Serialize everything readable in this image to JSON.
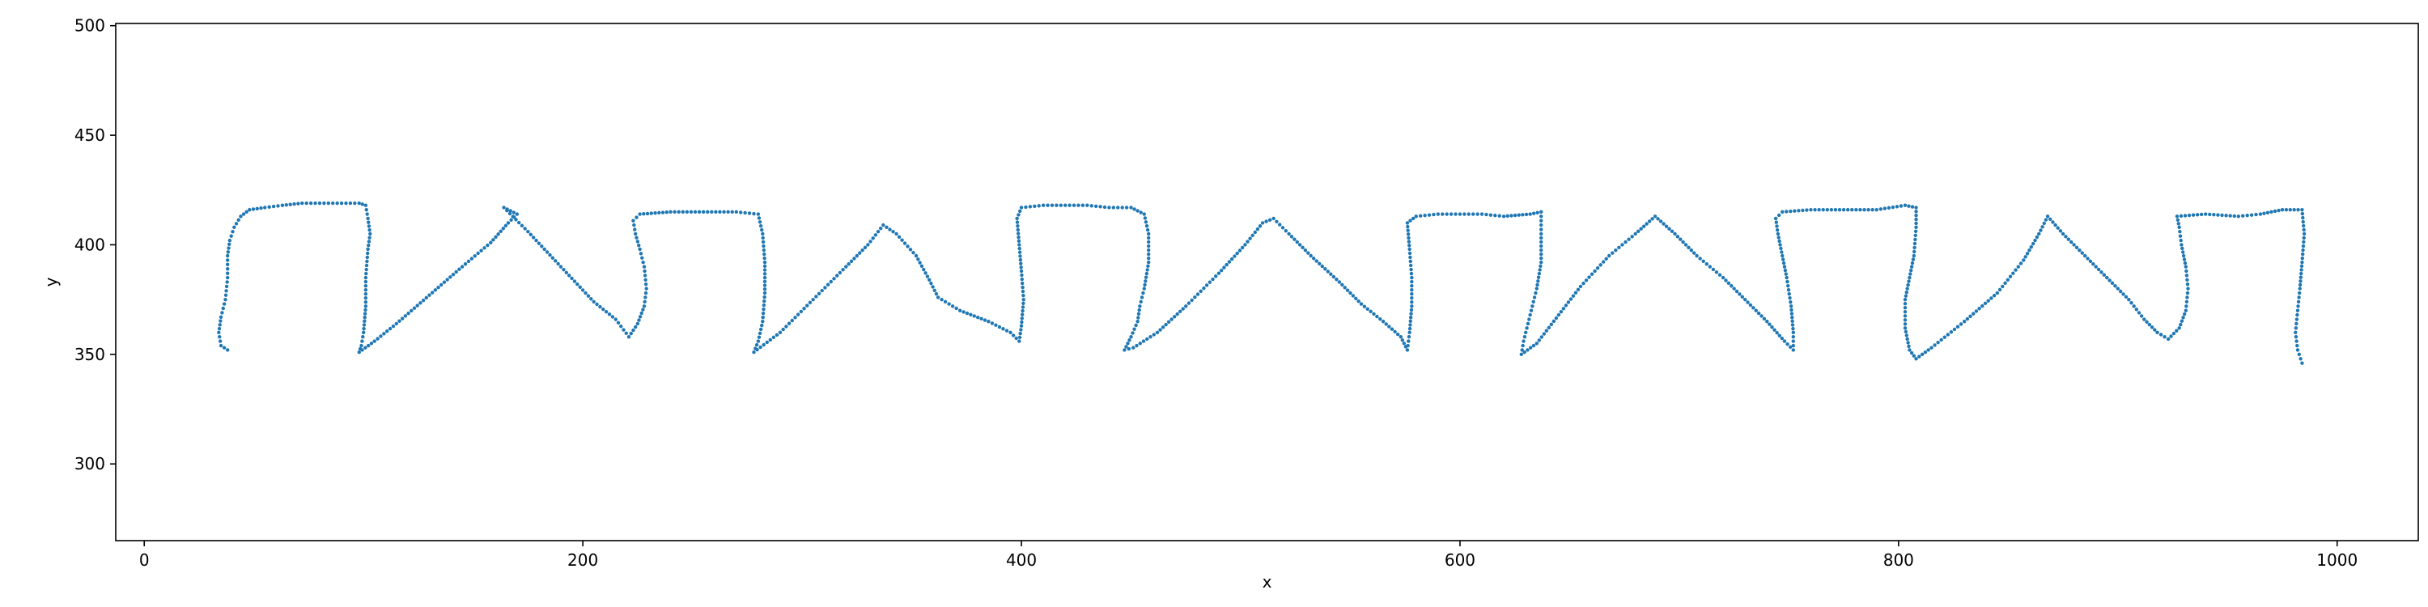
{
  "chart_data": {
    "type": "scatter",
    "title": "",
    "xlabel": "x",
    "ylabel": "y",
    "xlim": [
      -13,
      1037
    ],
    "ylim": [
      265,
      501
    ],
    "xticks": [
      0,
      200,
      400,
      600,
      800,
      1000
    ],
    "yticks": [
      300,
      350,
      400,
      450,
      500
    ],
    "grid": false,
    "legend": "none",
    "color": "#1f77b4",
    "path": [
      [
        38,
        352
      ],
      [
        35,
        354
      ],
      [
        34,
        360
      ],
      [
        35,
        367
      ],
      [
        37,
        375
      ],
      [
        38,
        385
      ],
      [
        38,
        395
      ],
      [
        39,
        402
      ],
      [
        41,
        408
      ],
      [
        44,
        413
      ],
      [
        48,
        416
      ],
      [
        55,
        417
      ],
      [
        63,
        418
      ],
      [
        72,
        419
      ],
      [
        82,
        419
      ],
      [
        90,
        419
      ],
      [
        98,
        419
      ],
      [
        101,
        418
      ],
      [
        102,
        412
      ],
      [
        103,
        405
      ],
      [
        102,
        398
      ],
      [
        101,
        385
      ],
      [
        101,
        372
      ],
      [
        100,
        360
      ],
      [
        99,
        354
      ],
      [
        98,
        351
      ],
      [
        105,
        356
      ],
      [
        115,
        364
      ],
      [
        130,
        377
      ],
      [
        145,
        390
      ],
      [
        158,
        401
      ],
      [
        166,
        410
      ],
      [
        170,
        414
      ],
      [
        164,
        417
      ],
      [
        175,
        406
      ],
      [
        190,
        390
      ],
      [
        205,
        374
      ],
      [
        215,
        366
      ],
      [
        221,
        358
      ],
      [
        225,
        364
      ],
      [
        228,
        372
      ],
      [
        229,
        380
      ],
      [
        228,
        390
      ],
      [
        226,
        398
      ],
      [
        224,
        405
      ],
      [
        223,
        411
      ],
      [
        226,
        414
      ],
      [
        240,
        415
      ],
      [
        255,
        415
      ],
      [
        270,
        415
      ],
      [
        280,
        414
      ],
      [
        282,
        405
      ],
      [
        283,
        392
      ],
      [
        283,
        378
      ],
      [
        282,
        365
      ],
      [
        280,
        356
      ],
      [
        278,
        351
      ],
      [
        290,
        360
      ],
      [
        305,
        375
      ],
      [
        320,
        390
      ],
      [
        330,
        400
      ],
      [
        337,
        409
      ],
      [
        343,
        405
      ],
      [
        352,
        395
      ],
      [
        358,
        384
      ],
      [
        362,
        376
      ],
      [
        372,
        370
      ],
      [
        385,
        365
      ],
      [
        395,
        360
      ],
      [
        399,
        356
      ],
      [
        400,
        363
      ],
      [
        401,
        375
      ],
      [
        400,
        388
      ],
      [
        399,
        400
      ],
      [
        398,
        412
      ],
      [
        400,
        417
      ],
      [
        410,
        418
      ],
      [
        420,
        418
      ],
      [
        430,
        418
      ],
      [
        440,
        417
      ],
      [
        450,
        417
      ],
      [
        456,
        414
      ],
      [
        458,
        405
      ],
      [
        458,
        392
      ],
      [
        456,
        380
      ],
      [
        454,
        372
      ],
      [
        453,
        365
      ],
      [
        450,
        358
      ],
      [
        447,
        352
      ],
      [
        451,
        353
      ],
      [
        462,
        360
      ],
      [
        475,
        372
      ],
      [
        490,
        387
      ],
      [
        502,
        400
      ],
      [
        510,
        410
      ],
      [
        515,
        412
      ],
      [
        522,
        405
      ],
      [
        532,
        395
      ],
      [
        545,
        383
      ],
      [
        555,
        373
      ],
      [
        565,
        365
      ],
      [
        573,
        358
      ],
      [
        576,
        352
      ],
      [
        577,
        360
      ],
      [
        578,
        372
      ],
      [
        578,
        385
      ],
      [
        577,
        398
      ],
      [
        576,
        410
      ],
      [
        580,
        413
      ],
      [
        590,
        414
      ],
      [
        600,
        414
      ],
      [
        610,
        414
      ],
      [
        620,
        413
      ],
      [
        632,
        414
      ],
      [
        637,
        415
      ],
      [
        637,
        405
      ],
      [
        637,
        392
      ],
      [
        635,
        380
      ],
      [
        633,
        372
      ],
      [
        631,
        364
      ],
      [
        629,
        356
      ],
      [
        628,
        350
      ],
      [
        635,
        355
      ],
      [
        645,
        368
      ],
      [
        655,
        381
      ],
      [
        668,
        395
      ],
      [
        680,
        405
      ],
      [
        689,
        413
      ],
      [
        698,
        405
      ],
      [
        708,
        395
      ],
      [
        720,
        385
      ],
      [
        730,
        375
      ],
      [
        740,
        365
      ],
      [
        748,
        356
      ],
      [
        752,
        352
      ],
      [
        752,
        360
      ],
      [
        751,
        372
      ],
      [
        749,
        385
      ],
      [
        747,
        395
      ],
      [
        745,
        405
      ],
      [
        744,
        412
      ],
      [
        747,
        415
      ],
      [
        760,
        416
      ],
      [
        775,
        416
      ],
      [
        790,
        416
      ],
      [
        803,
        418
      ],
      [
        808,
        417
      ],
      [
        808,
        408
      ],
      [
        807,
        395
      ],
      [
        805,
        385
      ],
      [
        803,
        375
      ],
      [
        803,
        362
      ],
      [
        805,
        352
      ],
      [
        808,
        348
      ],
      [
        815,
        353
      ],
      [
        830,
        365
      ],
      [
        845,
        378
      ],
      [
        857,
        393
      ],
      [
        864,
        405
      ],
      [
        868,
        413
      ],
      [
        875,
        405
      ],
      [
        885,
        395
      ],
      [
        895,
        385
      ],
      [
        905,
        375
      ],
      [
        912,
        366
      ],
      [
        918,
        360
      ],
      [
        923,
        357
      ],
      [
        928,
        362
      ],
      [
        931,
        370
      ],
      [
        932,
        380
      ],
      [
        931,
        390
      ],
      [
        929,
        400
      ],
      [
        928,
        408
      ],
      [
        927,
        413
      ],
      [
        940,
        414
      ],
      [
        955,
        413
      ],
      [
        965,
        414
      ],
      [
        975,
        416
      ],
      [
        984,
        416
      ],
      [
        985,
        405
      ],
      [
        984,
        392
      ],
      [
        983,
        380
      ],
      [
        982,
        370
      ],
      [
        981,
        360
      ],
      [
        982,
        352
      ],
      [
        984,
        346
      ]
    ]
  }
}
